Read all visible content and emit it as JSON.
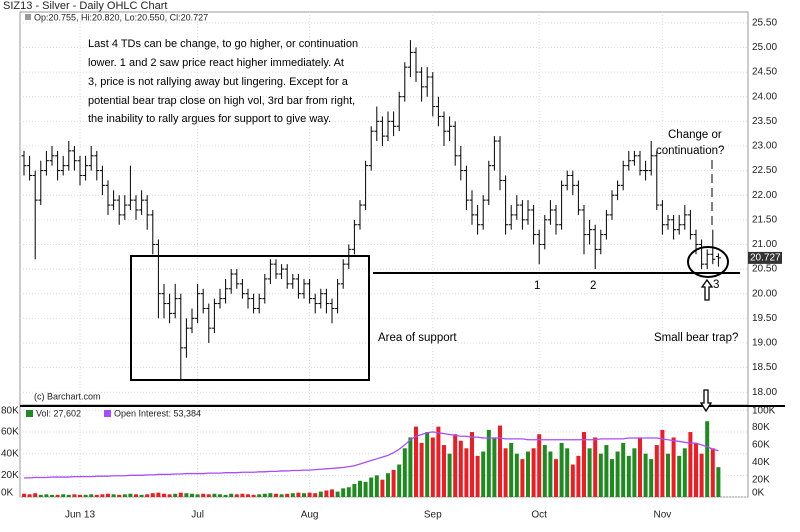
{
  "chart_data": [
    {
      "type": "ohlc",
      "title": "SIZ13 - Silver - Daily OHLC Chart",
      "header": "Op:20.755, Hi:20.820, Lo:20.550, Cl:20.727",
      "color": "#000000",
      "open": [
        22.8,
        22.6,
        22.4,
        21.9,
        22.5,
        22.7,
        22.8,
        22.5,
        22.6,
        22.9,
        22.7,
        22.4,
        22.6,
        22.8,
        22.5,
        22.2,
        21.8,
        21.9,
        21.6,
        21.8,
        21.9,
        21.7,
        21.9,
        21.6,
        21.0,
        20.0,
        19.8,
        19.6,
        19.9,
        18.9,
        19.3,
        19.5,
        20.0,
        19.7,
        19.3,
        19.8,
        19.9,
        20.1,
        20.4,
        20.2,
        20.0,
        19.9,
        19.7,
        19.9,
        20.3,
        20.6,
        20.4,
        20.5,
        20.2,
        20.3,
        20.0,
        20.2,
        19.9,
        19.8,
        20.0,
        19.8,
        19.7,
        20.2,
        20.6,
        20.9,
        21.4,
        21.8,
        22.6,
        23.3,
        23.5,
        23.2,
        23.5,
        23.4,
        24.0,
        24.6,
        24.9,
        24.5,
        24.2,
        24.4,
        23.8,
        23.6,
        23.3,
        23.4,
        22.8,
        22.5,
        21.9,
        21.6,
        21.4,
        21.9,
        22.6,
        23.1,
        22.3,
        21.4,
        21.6,
        21.8,
        21.5,
        21.7,
        21.2,
        21.0,
        21.5,
        21.7,
        21.4,
        22.2,
        22.4,
        22.2,
        21.7,
        21.2,
        21.3,
        20.9,
        21.2,
        21.6,
        22.0,
        22.2,
        22.6,
        22.7,
        22.8,
        22.5,
        22.5,
        22.8,
        21.8,
        21.4,
        21.5,
        21.3,
        21.4,
        21.6,
        21.2,
        21.0,
        20.6,
        20.8,
        20.755
      ],
      "high": [
        22.9,
        22.8,
        22.5,
        22.7,
        22.9,
        23.0,
        22.9,
        22.8,
        23.1,
        23.0,
        22.8,
        22.8,
        23.0,
        22.9,
        22.6,
        22.3,
        22.1,
        22.0,
        22.0,
        22.6,
        22.0,
        22.1,
        22.0,
        21.7,
        21.1,
        20.2,
        20.0,
        20.2,
        20.0,
        19.5,
        19.7,
        20.2,
        20.1,
        19.8,
        19.9,
        20.1,
        20.3,
        20.5,
        20.5,
        20.3,
        20.1,
        20.0,
        20.0,
        20.4,
        20.7,
        20.7,
        20.6,
        20.6,
        20.4,
        20.4,
        20.3,
        20.3,
        20.0,
        20.1,
        20.1,
        19.9,
        20.3,
        20.7,
        21.0,
        21.5,
        21.9,
        22.7,
        23.4,
        23.8,
        23.6,
        23.7,
        23.7,
        24.1,
        24.7,
        25.15,
        25.0,
        24.6,
        24.6,
        24.5,
        24.0,
        23.7,
        23.6,
        23.5,
        23.0,
        22.6,
        22.1,
        21.8,
        22.0,
        22.7,
        23.2,
        23.2,
        22.4,
        21.8,
        22.0,
        21.9,
        21.9,
        21.8,
        21.3,
        21.6,
        21.9,
        21.8,
        22.3,
        22.5,
        22.5,
        22.3,
        21.8,
        21.5,
        21.4,
        21.3,
        21.7,
        22.1,
        22.3,
        22.7,
        22.9,
        22.9,
        22.9,
        22.7,
        23.1,
        22.9,
        21.9,
        21.6,
        21.6,
        21.6,
        21.8,
        21.7,
        21.3,
        21.1,
        20.9,
        21.3,
        20.82
      ],
      "low": [
        22.4,
        22.3,
        20.7,
        21.8,
        22.4,
        22.6,
        22.3,
        22.4,
        22.5,
        22.5,
        22.2,
        22.3,
        22.5,
        22.3,
        22.0,
        21.6,
        21.7,
        21.4,
        21.5,
        21.7,
        21.5,
        21.6,
        21.3,
        20.8,
        19.5,
        19.5,
        19.4,
        19.5,
        18.25,
        18.7,
        19.2,
        19.4,
        19.6,
        19.0,
        19.2,
        19.7,
        19.8,
        20.0,
        20.1,
        19.9,
        19.7,
        19.6,
        19.6,
        19.8,
        20.2,
        20.3,
        20.3,
        20.1,
        20.1,
        19.9,
        19.9,
        19.8,
        19.6,
        19.7,
        19.6,
        19.4,
        19.6,
        20.1,
        20.5,
        20.8,
        21.3,
        21.7,
        22.5,
        23.1,
        23.0,
        23.1,
        23.2,
        23.3,
        23.9,
        24.4,
        24.3,
        23.9,
        24.0,
        23.6,
        23.4,
        23.0,
        23.1,
        22.6,
        22.3,
        21.7,
        21.4,
        21.2,
        21.3,
        21.8,
        22.5,
        22.1,
        21.2,
        21.3,
        21.5,
        21.3,
        21.4,
        21.0,
        20.6,
        20.9,
        21.4,
        21.2,
        21.3,
        22.1,
        22.0,
        21.6,
        20.8,
        21.0,
        20.5,
        20.8,
        21.1,
        21.5,
        21.9,
        22.1,
        22.5,
        22.6,
        22.4,
        22.3,
        22.4,
        21.7,
        21.2,
        21.3,
        21.1,
        21.2,
        21.3,
        21.1,
        20.8,
        20.5,
        20.5,
        20.6,
        20.55
      ],
      "close": [
        22.6,
        22.4,
        21.9,
        22.5,
        22.7,
        22.8,
        22.5,
        22.6,
        22.9,
        22.7,
        22.4,
        22.6,
        22.8,
        22.5,
        22.2,
        21.8,
        21.9,
        21.6,
        21.8,
        21.9,
        21.7,
        21.9,
        21.6,
        21.0,
        20.0,
        19.8,
        19.6,
        19.9,
        18.9,
        19.3,
        19.5,
        20.0,
        19.7,
        19.3,
        19.8,
        19.9,
        20.1,
        20.4,
        20.2,
        20.0,
        19.9,
        19.7,
        19.9,
        20.3,
        20.6,
        20.4,
        20.5,
        20.2,
        20.3,
        20.0,
        20.2,
        19.9,
        19.8,
        20.0,
        19.8,
        19.7,
        20.2,
        20.6,
        20.9,
        21.4,
        21.8,
        22.6,
        23.3,
        23.5,
        23.2,
        23.5,
        23.4,
        24.0,
        24.6,
        24.9,
        24.5,
        24.2,
        24.4,
        23.8,
        23.6,
        23.3,
        23.4,
        22.8,
        22.5,
        21.9,
        21.6,
        21.4,
        21.9,
        22.6,
        23.1,
        22.3,
        21.4,
        21.6,
        21.8,
        21.5,
        21.7,
        21.2,
        21.0,
        21.5,
        21.7,
        21.4,
        22.2,
        22.4,
        22.2,
        21.7,
        21.2,
        21.3,
        20.9,
        21.2,
        21.6,
        22.0,
        22.2,
        22.6,
        22.7,
        22.8,
        22.5,
        22.5,
        22.8,
        21.8,
        21.4,
        21.5,
        21.3,
        21.4,
        21.6,
        21.2,
        21.0,
        20.6,
        20.8,
        20.7,
        20.727
      ],
      "ylim": [
        17.74,
        25.72
      ],
      "yticks": [
        {
          "value": 18,
          "label": "18.00"
        },
        {
          "value": 18.5,
          "label": "18.50"
        },
        {
          "value": 19,
          "label": "19.00"
        },
        {
          "value": 19.5,
          "label": "19.50"
        },
        {
          "value": 20,
          "label": "20.00"
        },
        {
          "value": 20.5,
          "label": "20.50"
        },
        {
          "value": 21,
          "label": "21.00"
        },
        {
          "value": 21.5,
          "label": "21.50"
        },
        {
          "value": 22,
          "label": "22.00"
        },
        {
          "value": 22.5,
          "label": "22.50"
        },
        {
          "value": 23,
          "label": "23.00"
        },
        {
          "value": 23.5,
          "label": "23.50"
        },
        {
          "value": 24,
          "label": "24.00"
        },
        {
          "value": 24.5,
          "label": "24.50"
        },
        {
          "value": 25,
          "label": "25.00"
        },
        {
          "value": 25.5,
          "label": "25.50"
        }
      ],
      "grid": true,
      "credit": "(c) Barchart.com",
      "annotations": {
        "note": [
          "Last 4 TDs can be change, to go higher, or continuation",
          "lower.  1 and 2 saw price react higher immediately.  At",
          "3, price is not rallying away but lingering.  Except for a",
          "potential bear trap close on high vol, 3rd bar from right,",
          "the inability to rally argues for support to give way."
        ],
        "question": [
          "Change or",
          "continuation?"
        ],
        "support": "Area of support",
        "trap": "Small bear trap?",
        "marks": [
          "1",
          "2",
          "3"
        ]
      }
    },
    {
      "type": "bar",
      "categories": [
        null,
        null,
        null,
        null,
        null,
        null,
        null,
        null,
        null,
        null,
        "Jun 13",
        null,
        null,
        null,
        null,
        null,
        null,
        null,
        null,
        null,
        null,
        null,
        null,
        null,
        null,
        null,
        null,
        null,
        null,
        null,
        null,
        "Jul",
        null,
        null,
        null,
        null,
        null,
        null,
        null,
        null,
        null,
        null,
        null,
        null,
        null,
        null,
        null,
        null,
        null,
        null,
        null,
        "Aug",
        null,
        null,
        null,
        null,
        null,
        null,
        null,
        null,
        null,
        null,
        null,
        null,
        null,
        null,
        null,
        null,
        null,
        null,
        null,
        null,
        null,
        "Sep",
        null,
        null,
        null,
        null,
        null,
        null,
        null,
        null,
        null,
        null,
        null,
        null,
        null,
        null,
        null,
        null,
        null,
        null,
        "Oct",
        null,
        null,
        null,
        null,
        null,
        null,
        null,
        null,
        null,
        null,
        null,
        null,
        null,
        null,
        null,
        null,
        null,
        null,
        null,
        null,
        null,
        "Nov",
        null,
        null,
        null,
        null,
        null,
        null,
        null,
        null,
        null,
        null
      ],
      "series": [
        {
          "name": "Vol: 27,602",
          "color": "#1f8a1f",
          "down_color": "#ee1c25",
          "values": [
            3000,
            2500,
            3500,
            2000,
            2500,
            2000,
            2000,
            2500,
            2000,
            2500,
            2000,
            2000,
            2500,
            2000,
            2500,
            3000,
            2500,
            2000,
            2500,
            3000,
            2500,
            2000,
            2500,
            3500,
            4000,
            3000,
            2500,
            3000,
            4000,
            3500,
            3000,
            2500,
            3000,
            2500,
            3000,
            2500,
            2000,
            3000,
            2500,
            3000,
            2500,
            2000,
            2500,
            3000,
            3500,
            3000,
            2500,
            3000,
            3500,
            4000,
            3500,
            4000,
            3500,
            5000,
            6000,
            7000,
            5000,
            8000,
            9000,
            12000,
            15000,
            14000,
            18000,
            20000,
            16000,
            22000,
            25000,
            30000,
            45000,
            55000,
            65000,
            50000,
            60000,
            55000,
            65000,
            48000,
            40000,
            58000,
            52000,
            45000,
            60000,
            38000,
            42000,
            62000,
            55000,
            66000,
            45000,
            50000,
            40000,
            35000,
            42000,
            45000,
            58000,
            48000,
            42000,
            35000,
            50000,
            45000,
            30000,
            38000,
            60000,
            45000,
            55000,
            40000,
            48000,
            35000,
            42000,
            50000,
            38000,
            45000,
            55000,
            40000,
            35000,
            48000,
            62000,
            40000,
            55000,
            38000,
            45000,
            60000,
            50000,
            40000,
            70000,
            45000,
            27602
          ]
        },
        {
          "name": "Open Interest: 53,384",
          "type": "line",
          "axis": "y2",
          "color": "#a64dff",
          "values": [
            22000,
            22000,
            22500,
            22500,
            22500,
            23000,
            23000,
            23000,
            23000,
            23500,
            23500,
            23500,
            23500,
            24000,
            24000,
            24000,
            24500,
            24500,
            24500,
            25000,
            25000,
            25000,
            25500,
            25500,
            26000,
            26000,
            26000,
            26500,
            26500,
            27000,
            27000,
            27000,
            27000,
            27500,
            27500,
            27500,
            28000,
            28000,
            28000,
            28500,
            28500,
            28500,
            29000,
            29000,
            29500,
            29500,
            30000,
            30000,
            30500,
            30500,
            31000,
            31000,
            31500,
            32000,
            32500,
            33000,
            33500,
            34000,
            35000,
            36000,
            38000,
            40000,
            42000,
            44000,
            46000,
            48000,
            51000,
            55000,
            60000,
            66000,
            70000,
            72000,
            74000,
            75000,
            74000,
            73000,
            72000,
            71000,
            70000,
            70000,
            69000,
            69000,
            68000,
            68000,
            68000,
            68000,
            67000,
            67000,
            67000,
            67000,
            66000,
            66000,
            66000,
            66000,
            66000,
            66000,
            66000,
            66000,
            66000,
            66000,
            66000,
            66000,
            66000,
            67000,
            67000,
            67000,
            67000,
            67000,
            68000,
            68000,
            68000,
            68000,
            68000,
            68000,
            67000,
            66000,
            65000,
            64000,
            63000,
            62000,
            62000,
            60000,
            58000,
            55000,
            53384
          ]
        }
      ],
      "ylim": [
        0,
        85000
      ],
      "yticks": [
        {
          "value": 0,
          "label": "0K"
        },
        {
          "value": 20000,
          "label": "20K"
        },
        {
          "value": 40000,
          "label": "40K"
        },
        {
          "value": 60000,
          "label": "60K"
        },
        {
          "value": 80000,
          "label": "80K"
        }
      ],
      "y2lim": [
        0,
        106000
      ],
      "y2ticks": [
        {
          "value": 0,
          "label": "0K"
        },
        {
          "value": 20000,
          "label": "20K"
        },
        {
          "value": 40000,
          "label": "40K"
        },
        {
          "value": 60000,
          "label": "60K"
        },
        {
          "value": 80000,
          "label": "80K"
        },
        {
          "value": 100000,
          "label": "100K"
        }
      ],
      "grid": true
    }
  ]
}
